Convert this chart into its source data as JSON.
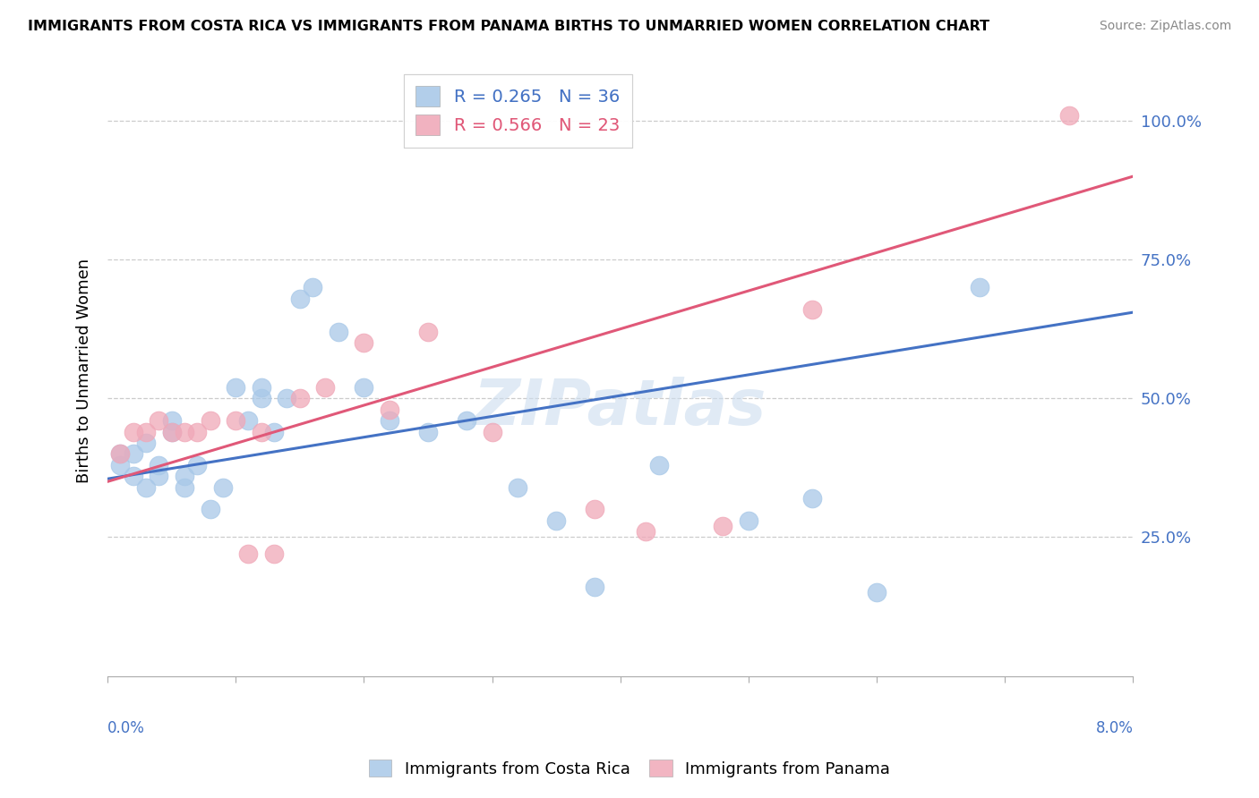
{
  "title": "IMMIGRANTS FROM COSTA RICA VS IMMIGRANTS FROM PANAMA BIRTHS TO UNMARRIED WOMEN CORRELATION CHART",
  "source": "Source: ZipAtlas.com",
  "ylabel": "Births to Unmarried Women",
  "y_ticks": [
    0.25,
    0.5,
    0.75,
    1.0
  ],
  "y_tick_labels": [
    "25.0%",
    "50.0%",
    "75.0%",
    "100.0%"
  ],
  "legend_label_cr": "Immigrants from Costa Rica",
  "legend_label_pa": "Immigrants from Panama",
  "blue_color": "#a8c8e8",
  "pink_color": "#f0a8b8",
  "blue_line_color": "#4472c4",
  "pink_line_color": "#e05878",
  "watermark_text": "ZIPatlas",
  "blue_points_x": [
    0.001,
    0.001,
    0.002,
    0.002,
    0.003,
    0.003,
    0.004,
    0.004,
    0.005,
    0.005,
    0.006,
    0.006,
    0.007,
    0.008,
    0.009,
    0.01,
    0.011,
    0.012,
    0.012,
    0.013,
    0.014,
    0.015,
    0.016,
    0.018,
    0.02,
    0.022,
    0.025,
    0.028,
    0.032,
    0.035,
    0.038,
    0.043,
    0.05,
    0.055,
    0.06,
    0.068
  ],
  "blue_points_y": [
    0.38,
    0.4,
    0.36,
    0.4,
    0.34,
    0.42,
    0.38,
    0.36,
    0.46,
    0.44,
    0.34,
    0.36,
    0.38,
    0.3,
    0.34,
    0.52,
    0.46,
    0.5,
    0.52,
    0.44,
    0.5,
    0.68,
    0.7,
    0.62,
    0.52,
    0.46,
    0.44,
    0.46,
    0.34,
    0.28,
    0.16,
    0.38,
    0.28,
    0.32,
    0.15,
    0.7
  ],
  "pink_points_x": [
    0.001,
    0.002,
    0.003,
    0.004,
    0.005,
    0.006,
    0.007,
    0.008,
    0.01,
    0.011,
    0.012,
    0.013,
    0.015,
    0.017,
    0.02,
    0.022,
    0.025,
    0.03,
    0.038,
    0.042,
    0.048,
    0.055,
    0.075
  ],
  "pink_points_y": [
    0.4,
    0.44,
    0.44,
    0.46,
    0.44,
    0.44,
    0.44,
    0.46,
    0.46,
    0.22,
    0.44,
    0.22,
    0.5,
    0.52,
    0.6,
    0.48,
    0.62,
    0.44,
    0.3,
    0.26,
    0.27,
    0.66,
    1.01
  ],
  "blue_line_x0": 0.0,
  "blue_line_x1": 0.08,
  "blue_line_y0": 0.355,
  "blue_line_y1": 0.655,
  "pink_line_x0": 0.0,
  "pink_line_x1": 0.08,
  "pink_line_y0": 0.35,
  "pink_line_y1": 0.9,
  "xlim": [
    0.0,
    0.08
  ],
  "ylim": [
    0.0,
    1.1
  ],
  "x_tick_positions": [
    0.0,
    0.01,
    0.02,
    0.03,
    0.04,
    0.05,
    0.06,
    0.07,
    0.08
  ],
  "figsize": [
    14.06,
    8.92
  ],
  "dpi": 100
}
